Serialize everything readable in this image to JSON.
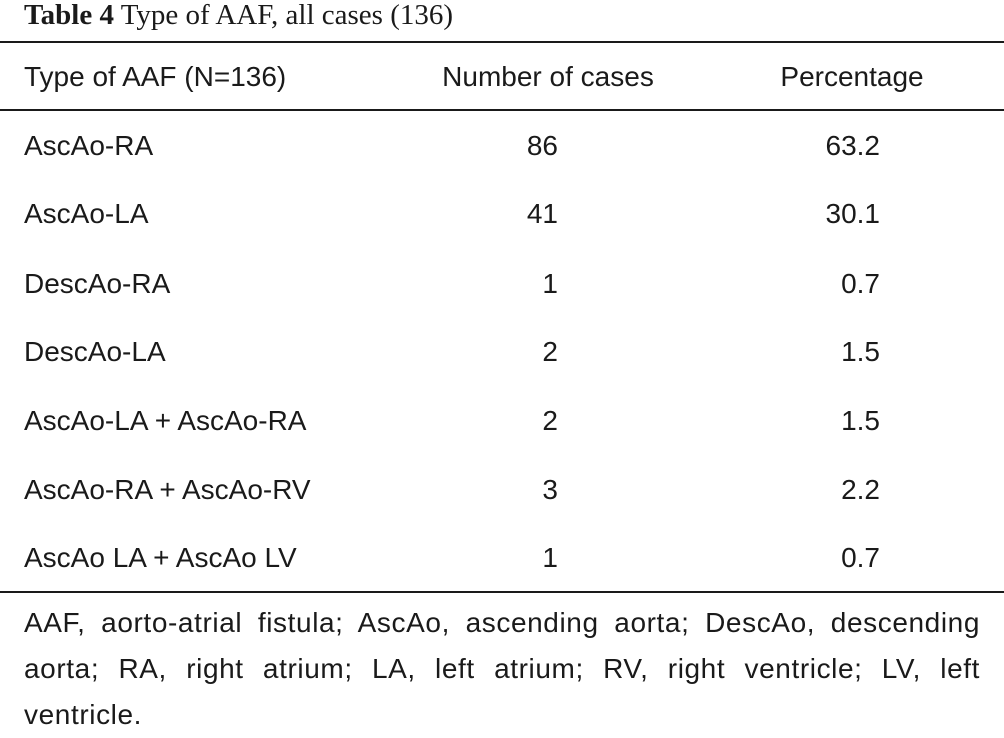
{
  "caption": {
    "label": "Table 4",
    "title": "Type of AAF, all cases (136)"
  },
  "table": {
    "headers": [
      "Type of AAF (N=136)",
      "Number of cases",
      "Percentage"
    ],
    "rows": [
      {
        "type": "AscAo-RA",
        "cases": "86",
        "percentage": "63.2"
      },
      {
        "type": "AscAo-LA",
        "cases": "41",
        "percentage": "30.1"
      },
      {
        "type": "DescAo-RA",
        "cases": "1",
        "percentage": "0.7"
      },
      {
        "type": "DescAo-LA",
        "cases": "2",
        "percentage": "1.5"
      },
      {
        "type": "AscAo-LA + AscAo-RA",
        "cases": "2",
        "percentage": "1.5"
      },
      {
        "type": "AscAo-RA + AscAo-RV",
        "cases": "3",
        "percentage": "2.2"
      },
      {
        "type": "AscAo LA + AscAo LV",
        "cases": "1",
        "percentage": "0.7"
      }
    ]
  },
  "footnote": "AAF, aorto-atrial fistula; AscAo, ascending aorta; DescAo, descending aorta; RA, right atrium; LA, left atrium; RV, right ventricle; LV, left ventricle."
}
